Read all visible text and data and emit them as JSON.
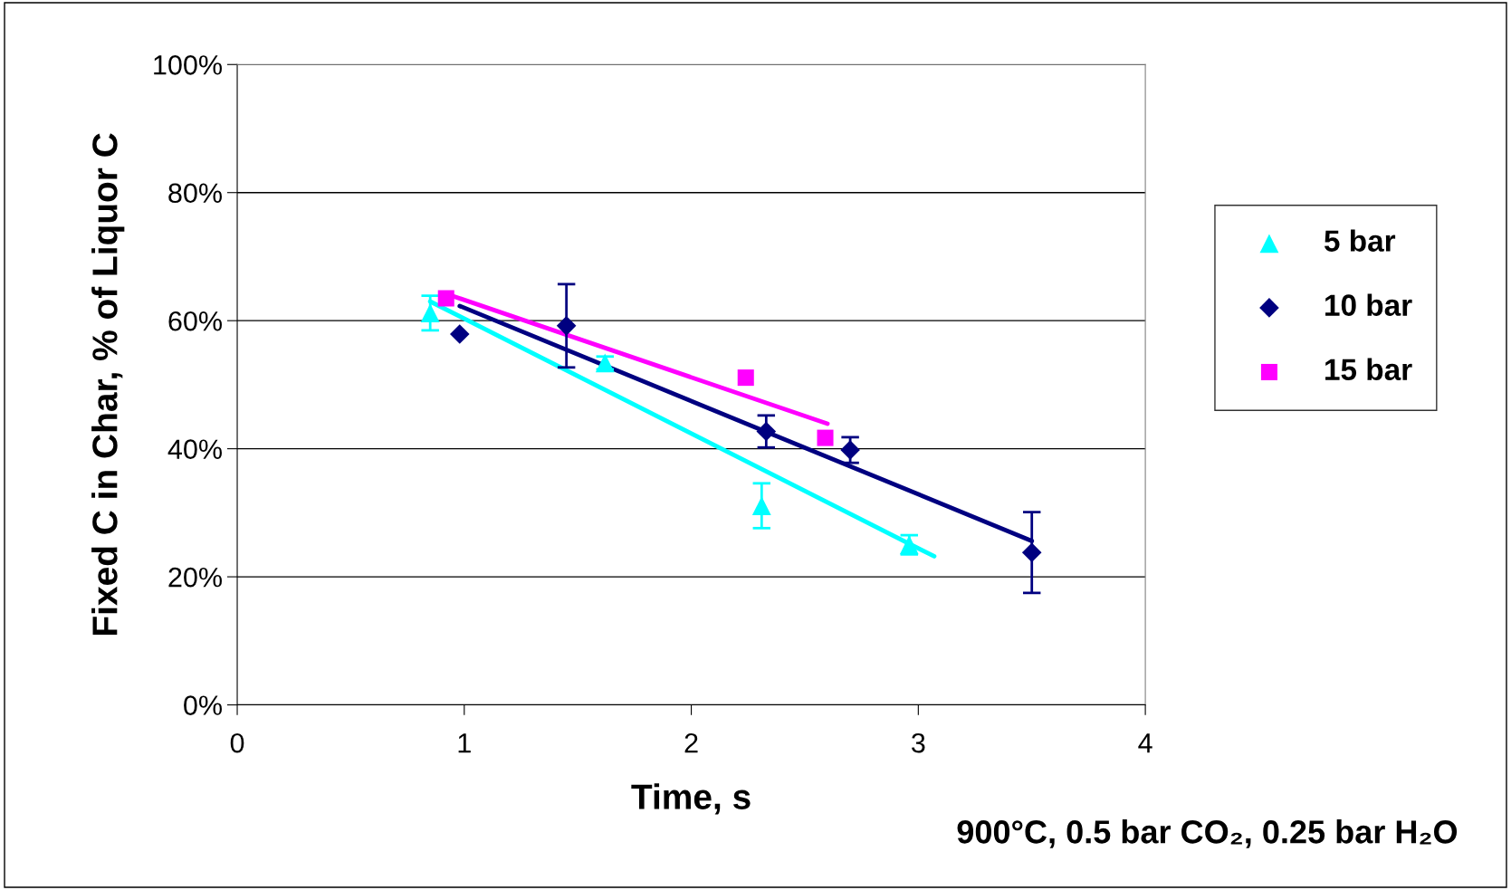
{
  "chart_data": {
    "type": "scatter",
    "xlabel": "Time, s",
    "ylabel": "Fixed C in Char, % of Liquor C",
    "annotations": [
      "900°C, 0.5 bar CO₂, 0.25 bar H₂O"
    ],
    "xlim": [
      0,
      4
    ],
    "xticks": [
      0,
      1,
      2,
      3,
      4
    ],
    "ylim": [
      0,
      100
    ],
    "yticks": [
      {
        "value": 0,
        "label": "0%"
      },
      {
        "value": 20,
        "label": "20%"
      },
      {
        "value": 40,
        "label": "40%"
      },
      {
        "value": 60,
        "label": "60%"
      },
      {
        "value": 80,
        "label": "80%"
      },
      {
        "value": 100,
        "label": "100%"
      }
    ],
    "grid": "y",
    "legend": "right",
    "series": [
      {
        "name": "5 bar",
        "color": "#00ffff",
        "marker": "triangle",
        "x": [
          0.85,
          1.62,
          2.31,
          2.96
        ],
        "values": [
          61.2,
          53.4,
          31.1,
          25.0
        ],
        "errors": [
          2.7,
          1.0,
          3.5,
          1.5
        ]
      },
      {
        "name": "10 bar",
        "color": "#000080",
        "marker": "diamond",
        "x": [
          0.98,
          1.45,
          2.33,
          2.7,
          3.5
        ],
        "values": [
          57.9,
          59.2,
          42.7,
          39.8,
          23.8
        ],
        "errors": [
          null,
          6.5,
          2.5,
          2.0,
          6.3
        ]
      },
      {
        "name": "15 bar",
        "color": "#ff00ff",
        "marker": "square",
        "x": [
          0.92,
          2.24,
          2.59
        ],
        "values": [
          63.5,
          51.1,
          41.7
        ]
      },
      {
        "type": "line",
        "color": "#00ffff",
        "x": [
          0.85,
          3.07
        ],
        "values": [
          63.0,
          23.2
        ]
      },
      {
        "type": "line",
        "color": "#000080",
        "x": [
          0.98,
          3.5
        ],
        "values": [
          62.3,
          25.6
        ]
      },
      {
        "type": "line",
        "color": "#ff00ff",
        "x": [
          0.92,
          2.6
        ],
        "values": [
          64.2,
          43.9
        ]
      }
    ]
  }
}
